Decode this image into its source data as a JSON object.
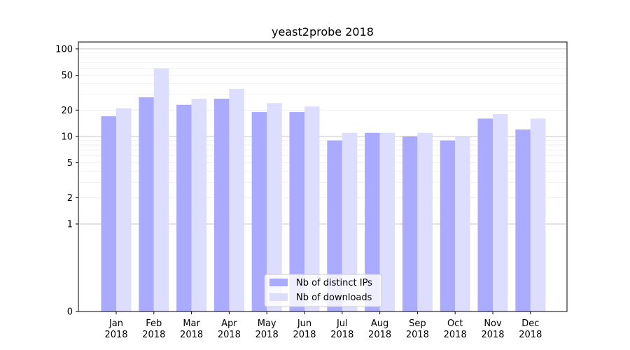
{
  "chart_data": {
    "type": "bar",
    "title": "yeast2probe 2018",
    "xlabel": "",
    "ylabel": "",
    "categories": [
      {
        "month": "Jan",
        "year": "2018"
      },
      {
        "month": "Feb",
        "year": "2018"
      },
      {
        "month": "Mar",
        "year": "2018"
      },
      {
        "month": "Apr",
        "year": "2018"
      },
      {
        "month": "May",
        "year": "2018"
      },
      {
        "month": "Jun",
        "year": "2018"
      },
      {
        "month": "Jul",
        "year": "2018"
      },
      {
        "month": "Aug",
        "year": "2018"
      },
      {
        "month": "Sep",
        "year": "2018"
      },
      {
        "month": "Oct",
        "year": "2018"
      },
      {
        "month": "Nov",
        "year": "2018"
      },
      {
        "month": "Dec",
        "year": "2018"
      }
    ],
    "series": [
      {
        "name": "Nb of distinct IPs",
        "color": "#aaaaff",
        "values": [
          17,
          28,
          23,
          27,
          19,
          19,
          9,
          11,
          10,
          9,
          16,
          12
        ]
      },
      {
        "name": "Nb of downloads",
        "color": "#ddddff",
        "values": [
          21,
          60,
          27,
          35,
          24,
          22,
          11,
          11,
          11,
          10,
          18,
          16
        ]
      }
    ],
    "yscale": "symlog",
    "ylim": [
      0,
      120
    ],
    "yticks": [
      {
        "value": 0,
        "label": "0"
      },
      {
        "value": 1,
        "label": "1"
      },
      {
        "value": 2,
        "label": "2"
      },
      {
        "value": 5,
        "label": "5"
      },
      {
        "value": 10,
        "label": "10"
      },
      {
        "value": 20,
        "label": "20"
      },
      {
        "value": 50,
        "label": "50"
      },
      {
        "value": 100,
        "label": "100"
      }
    ],
    "major_gridlines": [
      1,
      10,
      100
    ],
    "minor_gridlines": [
      2,
      3,
      4,
      5,
      6,
      7,
      8,
      9,
      20,
      30,
      40,
      50,
      60,
      70,
      80,
      90
    ],
    "grid": true,
    "legend_position": "bottom-center"
  }
}
